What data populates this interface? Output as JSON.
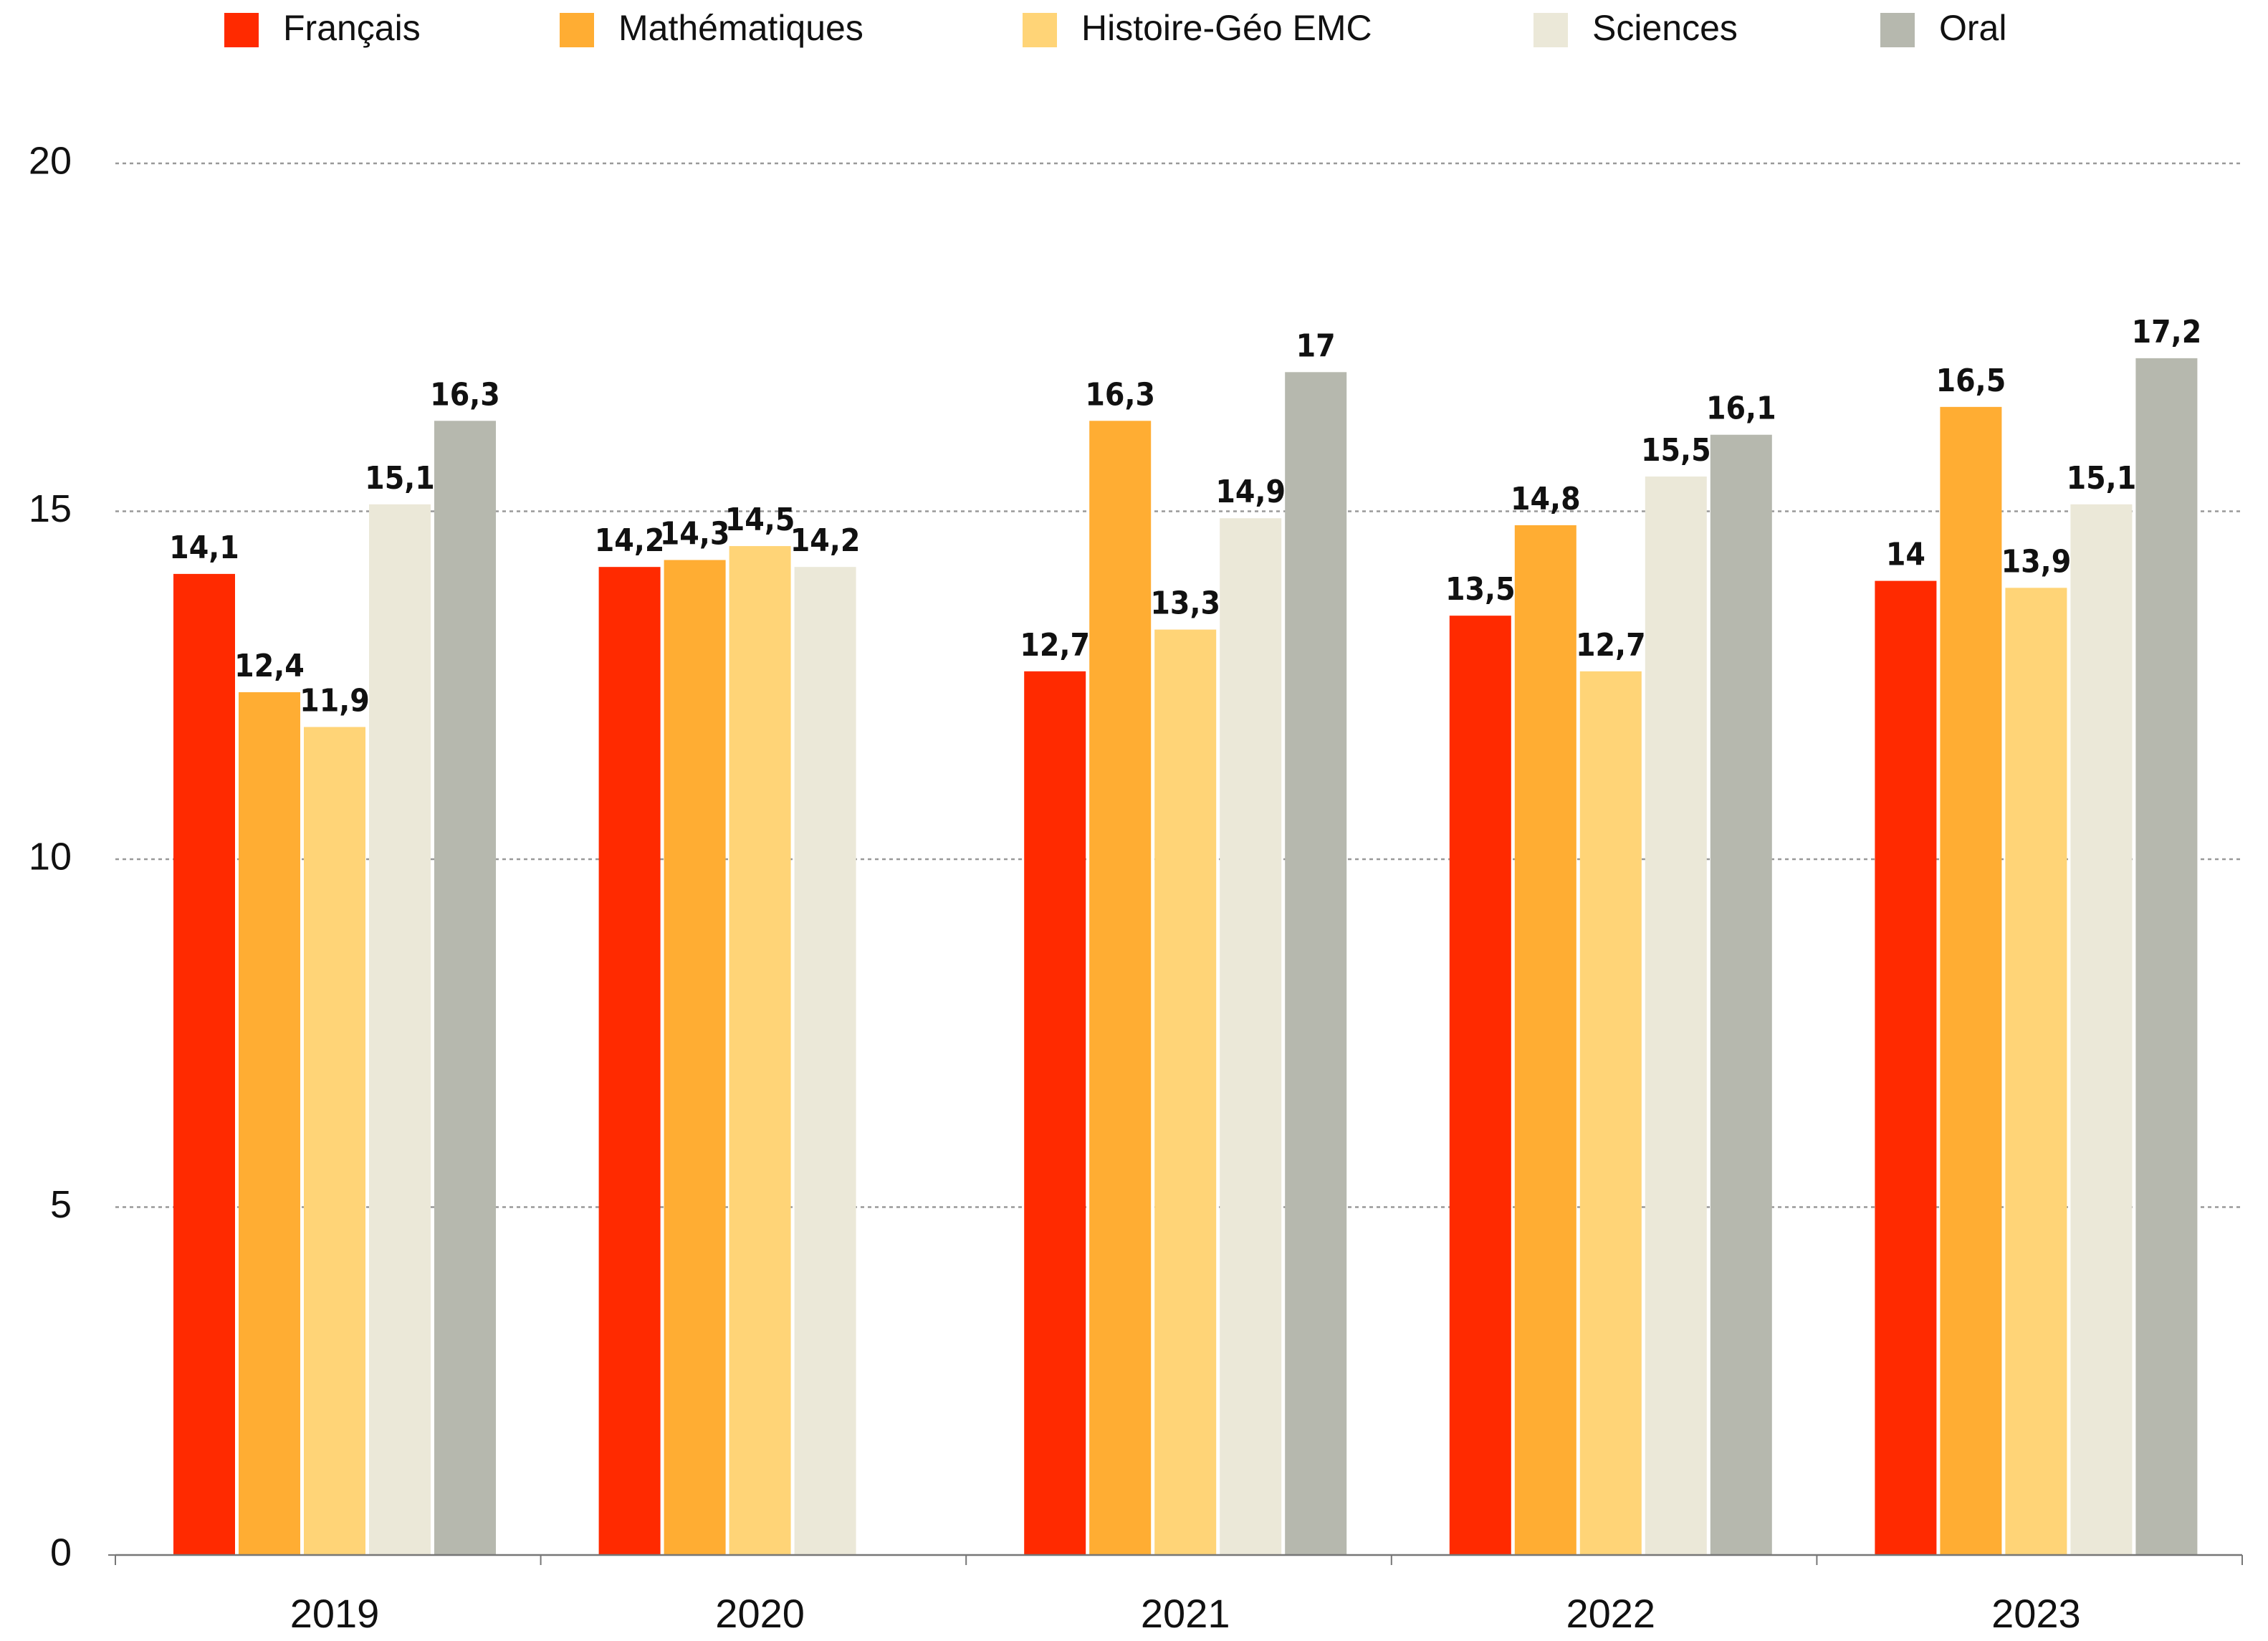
{
  "chart_data": {
    "type": "bar",
    "categories": [
      "2019",
      "2020",
      "2021",
      "2022",
      "2023"
    ],
    "series": [
      {
        "name": "Français",
        "color": "#ff2a00",
        "values": [
          14.1,
          14.2,
          12.7,
          13.5,
          14
        ],
        "value_labels": [
          "14,1",
          "14,2",
          "12,7",
          "13,5",
          "14"
        ]
      },
      {
        "name": "Mathématiques",
        "color": "#ffad33",
        "values": [
          12.4,
          14.3,
          16.3,
          14.8,
          16.5
        ],
        "value_labels": [
          "12,4",
          "14,3",
          "16,3",
          "14,8",
          "16,5"
        ]
      },
      {
        "name": "Histoire-Géo EMC",
        "color": "#ffd477",
        "values": [
          11.9,
          14.5,
          13.3,
          12.7,
          13.9
        ],
        "value_labels": [
          "11,9",
          "14,5",
          "13,3",
          "12,7",
          "13,9"
        ]
      },
      {
        "name": "Sciences",
        "color": "#ebe8d8",
        "values": [
          15.1,
          14.2,
          14.9,
          15.5,
          15.1
        ],
        "value_labels": [
          "15,1",
          "14,2",
          "14,9",
          "15,5",
          "15,1"
        ]
      },
      {
        "name": "Oral",
        "color": "#b6b8ae",
        "values": [
          16.3,
          null,
          17,
          16.1,
          17.2
        ],
        "value_labels": [
          "16,3",
          null,
          "17",
          "16,1",
          "17,2"
        ]
      }
    ],
    "ylim": [
      0,
      20
    ],
    "yticks": [
      0,
      5,
      10,
      15,
      20
    ],
    "grid": true,
    "legend": "top"
  }
}
